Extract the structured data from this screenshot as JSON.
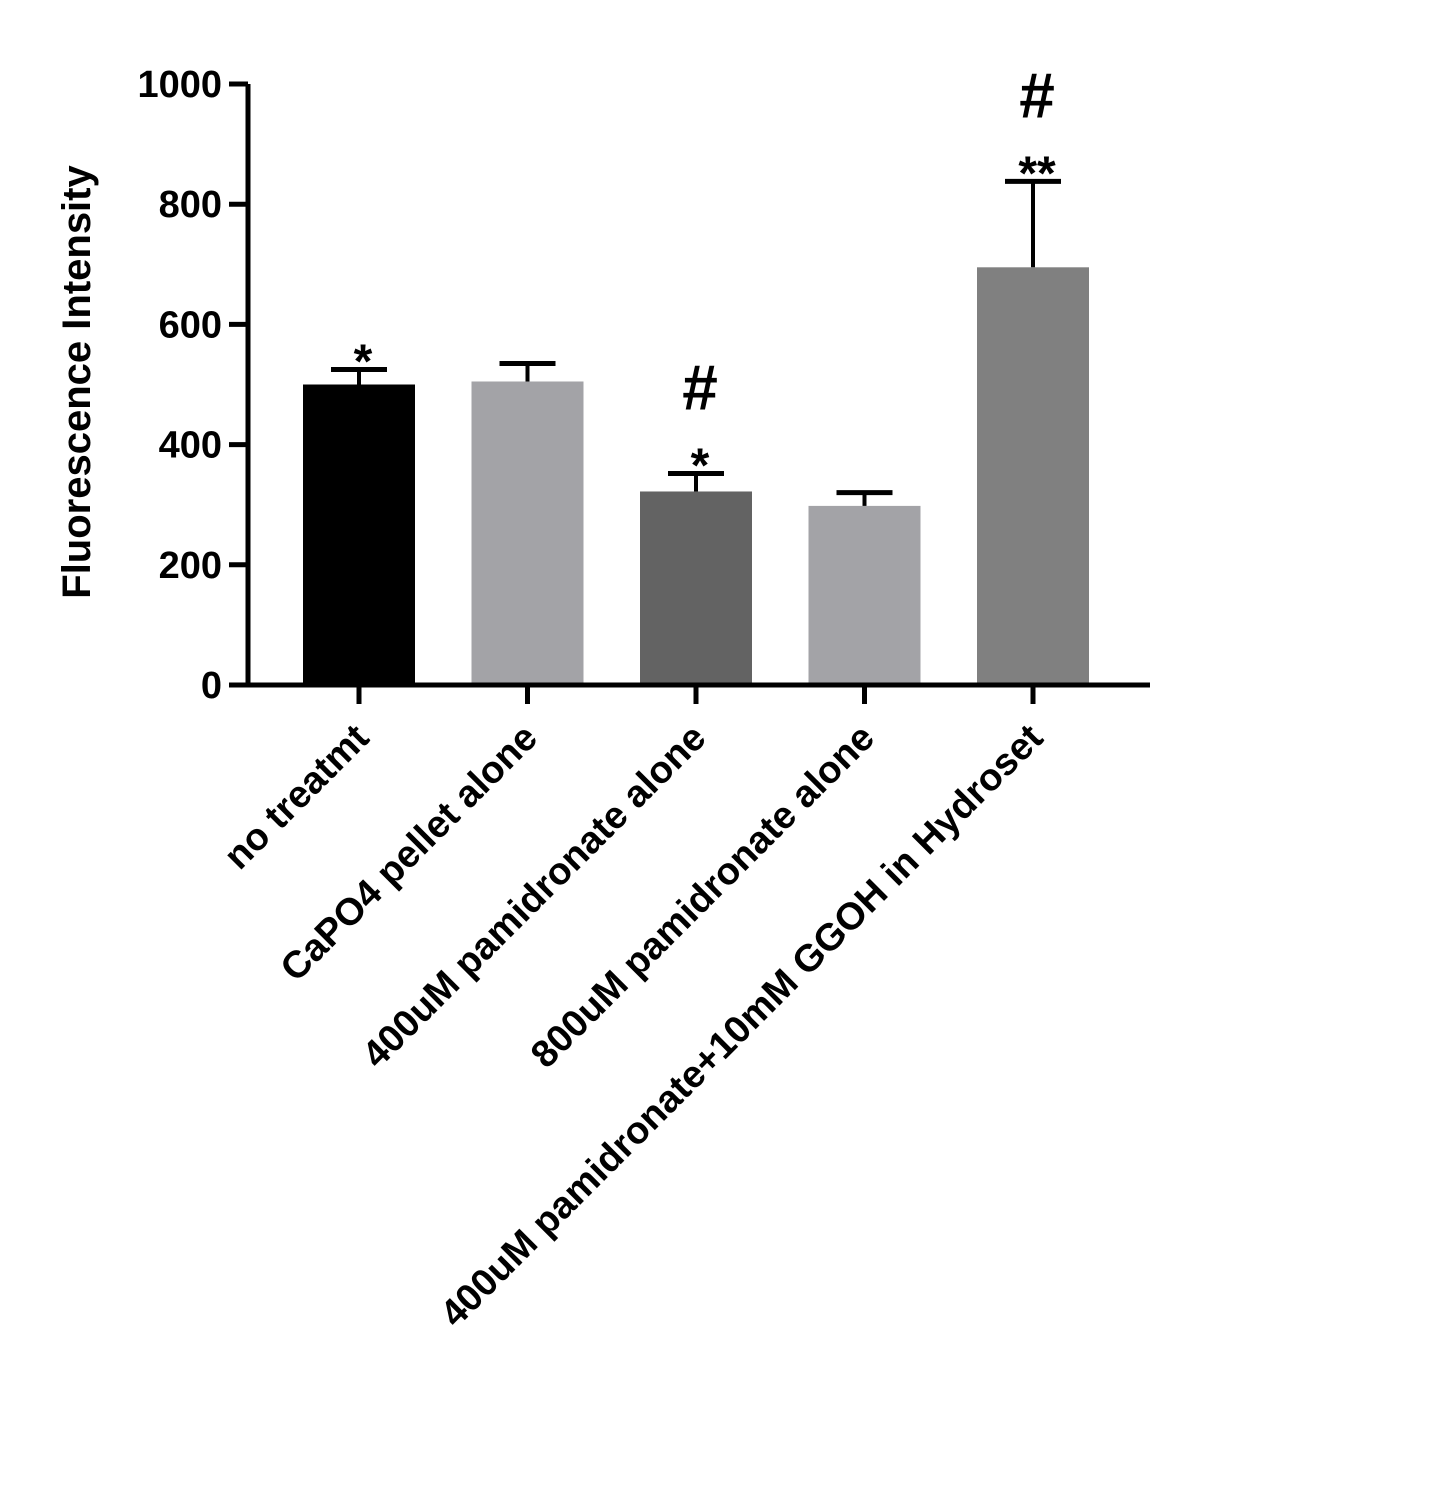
{
  "chart_data": {
    "type": "bar",
    "title": "",
    "xlabel": "",
    "ylabel": "Fluorescence Intensity",
    "ylim": [
      0,
      1000
    ],
    "yticks": [
      0,
      200,
      400,
      600,
      800,
      1000
    ],
    "grid": false,
    "legend": "none",
    "categories": [
      "no treatmt",
      "CaPO4 pellet alone",
      "400uM pamidronate alone",
      "800uM pamidronate alone",
      "400uM pamidronate+10mM GGOH in Hydroset"
    ],
    "values": [
      500,
      505,
      322,
      298,
      695
    ],
    "error_upper": [
      525,
      535,
      352,
      320,
      838
    ],
    "bar_colors": [
      "#000000",
      "#a3a3a7",
      "#636363",
      "#a3a3a7",
      "#808080"
    ],
    "annotations": [
      {
        "category": 0,
        "marks": [
          "*"
        ]
      },
      {
        "category": 1,
        "marks": []
      },
      {
        "category": 2,
        "marks": [
          "#",
          "*"
        ]
      },
      {
        "category": 3,
        "marks": []
      },
      {
        "category": 4,
        "marks": [
          "#",
          "**"
        ]
      }
    ]
  }
}
